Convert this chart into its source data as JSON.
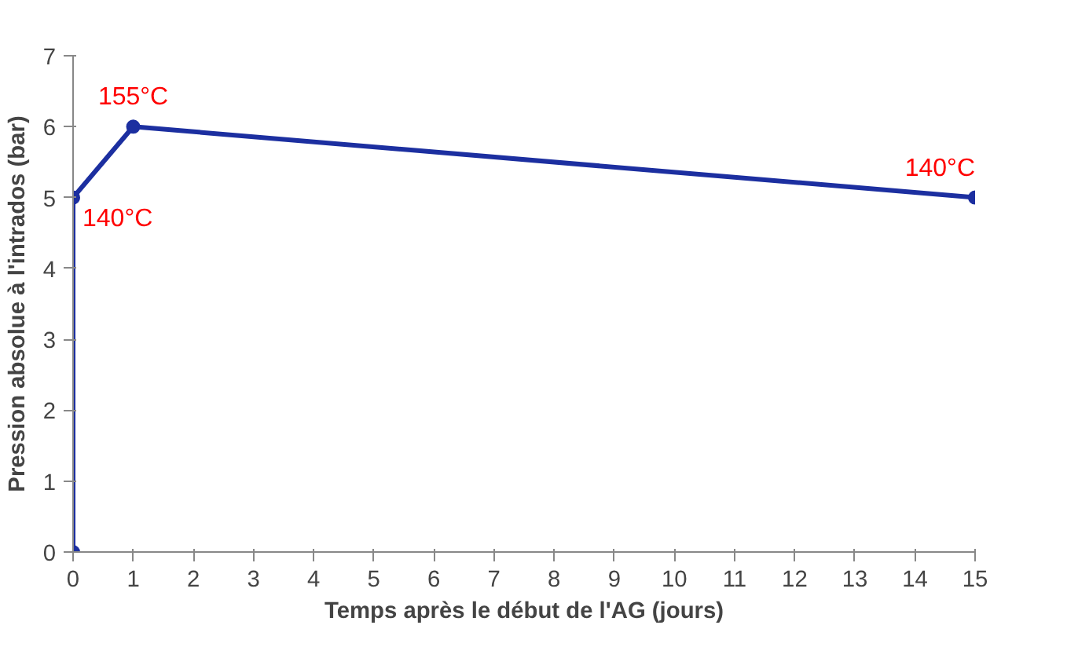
{
  "chart_data": {
    "type": "line",
    "xlabel": "Temps après le début de l'AG (jours)",
    "ylabel": "Pression absolue à l'intrados (bar)",
    "x": [
      0,
      0,
      1,
      15
    ],
    "series": [
      {
        "color": "#1c2fa0",
        "values": [
          0,
          5,
          6,
          5
        ]
      }
    ],
    "marker": "circle",
    "line_style": "solid",
    "grid": false,
    "xlim": [
      0,
      15
    ],
    "xticks": [
      0,
      1,
      2,
      3,
      4,
      5,
      6,
      7,
      8,
      9,
      10,
      11,
      12,
      13,
      14,
      15
    ],
    "ylim": [
      0,
      7
    ],
    "yticks": [
      0,
      1,
      2,
      3,
      4,
      5,
      6,
      7
    ],
    "annotations": [
      {
        "text": "155°C",
        "x": 1,
        "y": 6
      },
      {
        "text": "140°C",
        "x": 0,
        "y": 5
      },
      {
        "text": "140°C",
        "x": 15,
        "y": 5
      }
    ]
  }
}
